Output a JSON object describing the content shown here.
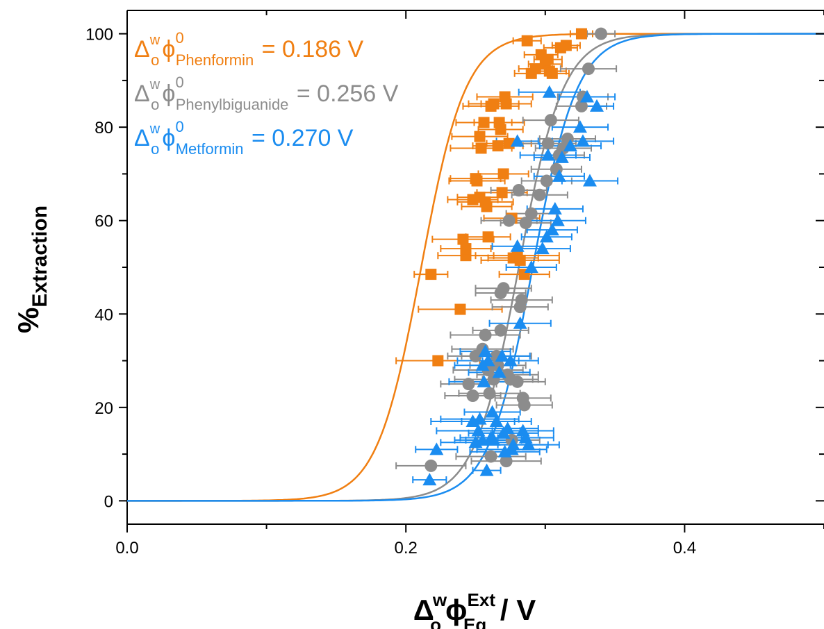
{
  "chart_data": {
    "type": "scatter",
    "xlabel": {
      "main": "Δ",
      "sub": "o",
      "sup": "w",
      "phi": "ϕ",
      "phi_sup": "Ext",
      "phi_sub": "Eq",
      "unit": " / V"
    },
    "ylabel": {
      "main": "%",
      "sub": "Extraction"
    },
    "xlim": [
      0.0,
      0.5
    ],
    "ylim": [
      -5,
      105
    ],
    "xticks": [
      0.0,
      0.2,
      0.4
    ],
    "xtick_labels": [
      "0.0",
      "0.2",
      "0.4"
    ],
    "yticks": [
      0,
      20,
      40,
      60,
      80,
      100
    ],
    "ytick_labels": [
      "0",
      "20",
      "40",
      "60",
      "80",
      "100"
    ],
    "grid": false,
    "legend_placement": "top-left",
    "legend": [
      {
        "delta": "Δ",
        "sub": "o",
        "sup": "w",
        "phi": "ϕ",
        "phi_sup": "0",
        "phi_sub": "Phenformin",
        "value_text": " = 0.186 V"
      },
      {
        "delta": "Δ",
        "sub": "o",
        "sup": "w",
        "phi": "ϕ",
        "phi_sup": "0",
        "phi_sub": "Phenylbiguanide",
        "value_text": " = 0.256 V"
      },
      {
        "delta": "Δ",
        "sub": "o",
        "sup": "w",
        "phi": "ϕ",
        "phi_sup": "0",
        "phi_sub": "Metformin",
        "value_text": " = 0.270 V"
      }
    ],
    "series": [
      {
        "name": "Phenformin",
        "color": "#f07f12",
        "marker": "square",
        "fit_midpoint": 0.211,
        "fit_slope": 63,
        "points": [
          [
            0.218,
            48.5,
            0.012
          ],
          [
            0.223,
            30,
            0.03
          ],
          [
            0.239,
            41,
            0.03
          ],
          [
            0.243,
            52.5,
            0.02
          ],
          [
            0.243,
            54,
            0.018
          ],
          [
            0.241,
            56,
            0.022
          ],
          [
            0.248,
            64.5,
            0.018
          ],
          [
            0.251,
            68.5,
            0.02
          ],
          [
            0.25,
            69,
            0.018
          ],
          [
            0.253,
            65,
            0.016
          ],
          [
            0.253,
            78,
            0.02
          ],
          [
            0.254,
            75.5,
            0.022
          ],
          [
            0.256,
            81,
            0.02
          ],
          [
            0.257,
            64,
            0.02
          ],
          [
            0.258,
            63,
            0.018
          ],
          [
            0.259,
            56.5,
            0.016
          ],
          [
            0.261,
            84.5,
            0.02
          ],
          [
            0.263,
            85,
            0.018
          ],
          [
            0.266,
            76,
            0.018
          ],
          [
            0.267,
            81,
            0.018
          ],
          [
            0.268,
            79.5,
            0.016
          ],
          [
            0.269,
            66,
            0.018
          ],
          [
            0.27,
            70,
            0.018
          ],
          [
            0.271,
            86.5,
            0.02
          ],
          [
            0.272,
            85,
            0.018
          ],
          [
            0.274,
            76.5,
            0.016
          ],
          [
            0.276,
            60.5,
            0.02
          ],
          [
            0.277,
            52,
            0.018
          ],
          [
            0.28,
            52.5,
            0.03
          ],
          [
            0.282,
            51.5,
            0.028
          ],
          [
            0.285,
            48.5,
            0.018
          ],
          [
            0.287,
            98.5,
            0.01
          ],
          [
            0.29,
            91.5,
            0.012
          ],
          [
            0.293,
            92.5,
            0.012
          ],
          [
            0.297,
            95.5,
            0.012
          ],
          [
            0.3,
            93.5,
            0.012
          ],
          [
            0.302,
            94.5,
            0.01
          ],
          [
            0.303,
            92,
            0.012
          ],
          [
            0.305,
            91.5,
            0.012
          ],
          [
            0.311,
            97,
            0.012
          ],
          [
            0.315,
            97.5,
            0.01
          ],
          [
            0.326,
            100,
            0.008
          ]
        ]
      },
      {
        "name": "Phenylbiguanide",
        "color": "#8c8c8c",
        "marker": "circle",
        "fit_midpoint": 0.281,
        "fit_slope": 63,
        "points": [
          [
            0.218,
            7.5,
            0.025
          ],
          [
            0.245,
            25,
            0.02
          ],
          [
            0.248,
            22.5,
            0.02
          ],
          [
            0.25,
            31,
            0.02
          ],
          [
            0.255,
            32.5,
            0.022
          ],
          [
            0.257,
            35.5,
            0.025
          ],
          [
            0.259,
            28,
            0.025
          ],
          [
            0.26,
            23,
            0.022
          ],
          [
            0.261,
            9.5,
            0.025
          ],
          [
            0.263,
            26,
            0.028
          ],
          [
            0.265,
            31,
            0.025
          ],
          [
            0.266,
            29,
            0.02
          ],
          [
            0.268,
            36.5,
            0.02
          ],
          [
            0.268,
            44.5,
            0.018
          ],
          [
            0.27,
            45.5,
            0.02
          ],
          [
            0.272,
            8.5,
            0.025
          ],
          [
            0.273,
            27,
            0.022
          ],
          [
            0.274,
            60,
            0.02
          ],
          [
            0.275,
            26,
            0.02
          ],
          [
            0.276,
            13,
            0.02
          ],
          [
            0.28,
            25.5,
            0.02
          ],
          [
            0.281,
            66.5,
            0.02
          ],
          [
            0.282,
            41.5,
            0.02
          ],
          [
            0.283,
            43,
            0.022
          ],
          [
            0.284,
            22,
            0.02
          ],
          [
            0.285,
            20.5,
            0.02
          ],
          [
            0.286,
            59.5,
            0.018
          ],
          [
            0.29,
            61.5,
            0.018
          ],
          [
            0.296,
            65.5,
            0.02
          ],
          [
            0.301,
            68.5,
            0.018
          ],
          [
            0.302,
            76.5,
            0.02
          ],
          [
            0.304,
            81.5,
            0.02
          ],
          [
            0.308,
            71,
            0.018
          ],
          [
            0.31,
            74,
            0.018
          ],
          [
            0.313,
            75.5,
            0.02
          ],
          [
            0.316,
            77.5,
            0.02
          ],
          [
            0.326,
            84.5,
            0.018
          ],
          [
            0.327,
            86.5,
            0.018
          ],
          [
            0.331,
            92.5,
            0.02
          ],
          [
            0.34,
            100,
            0.01
          ]
        ]
      },
      {
        "name": "Metformin",
        "color": "#1a8cf0",
        "marker": "triangle",
        "fit_midpoint": 0.291,
        "fit_slope": 63,
        "points": [
          [
            0.217,
            4.5,
            0.012
          ],
          [
            0.222,
            11,
            0.015
          ],
          [
            0.248,
            17,
            0.03
          ],
          [
            0.25,
            12.5,
            0.025
          ],
          [
            0.252,
            15,
            0.03
          ],
          [
            0.253,
            17.5,
            0.028
          ],
          [
            0.255,
            29,
            0.02
          ],
          [
            0.255,
            13,
            0.02
          ],
          [
            0.256,
            25.5,
            0.025
          ],
          [
            0.257,
            32,
            0.018
          ],
          [
            0.258,
            6.5,
            0.01
          ],
          [
            0.259,
            30,
            0.022
          ],
          [
            0.261,
            13.5,
            0.022
          ],
          [
            0.262,
            19,
            0.02
          ],
          [
            0.263,
            13,
            0.02
          ],
          [
            0.265,
            17,
            0.025
          ],
          [
            0.267,
            27.5,
            0.022
          ],
          [
            0.269,
            31,
            0.02
          ],
          [
            0.27,
            14.5,
            0.025
          ],
          [
            0.271,
            10.5,
            0.025
          ],
          [
            0.273,
            15.5,
            0.022
          ],
          [
            0.275,
            30,
            0.02
          ],
          [
            0.276,
            11,
            0.025
          ],
          [
            0.277,
            12,
            0.025
          ],
          [
            0.28,
            77,
            0.015
          ],
          [
            0.28,
            54.5,
            0.018
          ],
          [
            0.282,
            38,
            0.022
          ],
          [
            0.284,
            15,
            0.022
          ],
          [
            0.286,
            13.5,
            0.02
          ],
          [
            0.288,
            12,
            0.022
          ],
          [
            0.29,
            50,
            0.018
          ],
          [
            0.298,
            54,
            0.02
          ],
          [
            0.301,
            56.5,
            0.018
          ],
          [
            0.302,
            74,
            0.02
          ],
          [
            0.303,
            87.5,
            0.022
          ],
          [
            0.305,
            58,
            0.018
          ],
          [
            0.307,
            62.5,
            0.02
          ],
          [
            0.309,
            60,
            0.02
          ],
          [
            0.31,
            69.5,
            0.018
          ],
          [
            0.312,
            73.5,
            0.02
          ],
          [
            0.318,
            76,
            0.022
          ],
          [
            0.325,
            80,
            0.02
          ],
          [
            0.327,
            77,
            0.022
          ],
          [
            0.33,
            86.5,
            0.02
          ],
          [
            0.332,
            68.5,
            0.02
          ],
          [
            0.337,
            84.5,
            0.012
          ]
        ]
      }
    ]
  }
}
